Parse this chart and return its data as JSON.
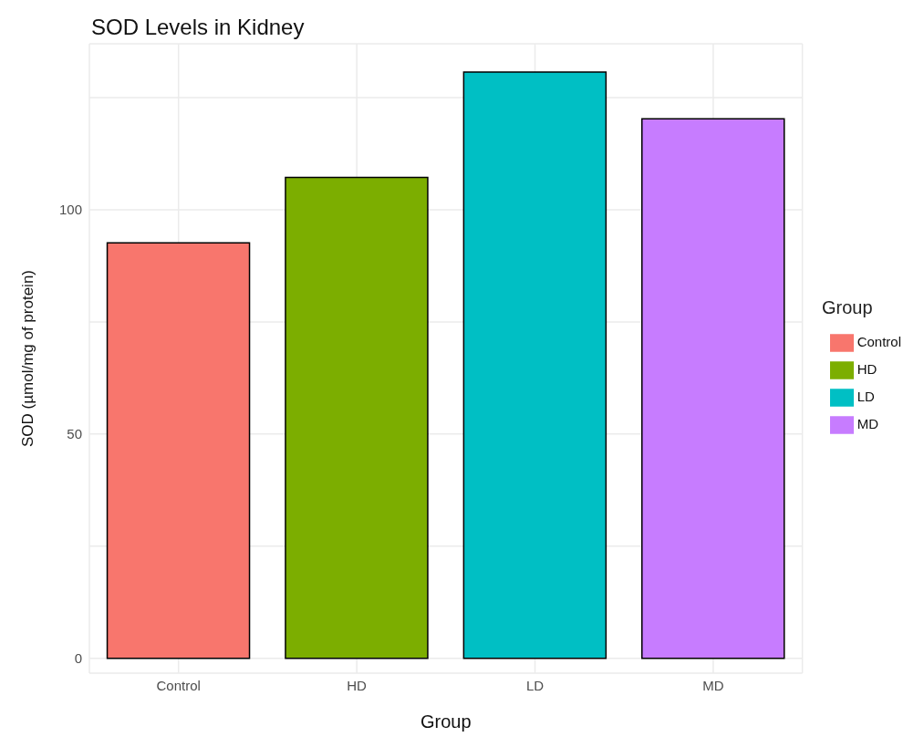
{
  "chart_data": {
    "type": "bar",
    "title": "SOD Levels in Kidney",
    "xlabel": "Group",
    "ylabel": "SOD (µmol/mg of protein)",
    "legend_title": "Group",
    "categories": [
      "Control",
      "HD",
      "LD",
      "MD"
    ],
    "series": [
      {
        "name": "Control",
        "color": "#f8766d",
        "values": [
          92.6,
          null,
          null,
          null
        ]
      },
      {
        "name": "HD",
        "color": "#7cae00",
        "values": [
          null,
          107.2,
          null,
          null
        ]
      },
      {
        "name": "LD",
        "color": "#00bfc4",
        "values": [
          null,
          null,
          130.7,
          null
        ]
      },
      {
        "name": "MD",
        "color": "#c77cff",
        "values": [
          null,
          null,
          null,
          120.3
        ]
      }
    ],
    "ylim": [
      -3.3,
      137
    ],
    "yticks": [
      0,
      {
        "value": 25,
        "label": null
      },
      50,
      {
        "value": 75,
        "label": null
      },
      100,
      {
        "value": 125,
        "label": null
      }
    ],
    "grid": true,
    "legend": "right"
  }
}
